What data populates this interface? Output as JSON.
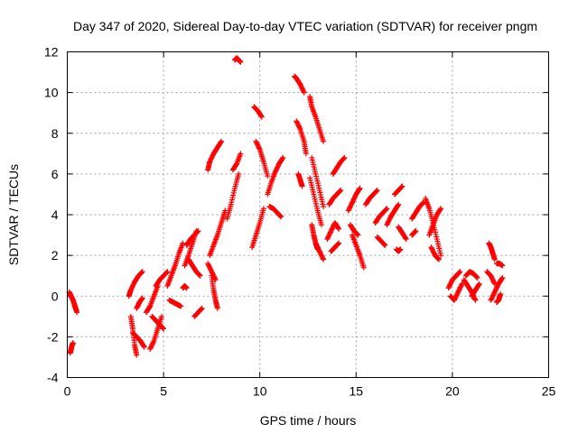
{
  "chart_data": {
    "type": "scatter",
    "title": "Day 347 of 2020, Sidereal Day-to-day VTEC variation (SDTVAR) for receiver pngm",
    "xlabel": "GPS time / hours",
    "ylabel": "SDTVAR / TECUs",
    "xlim": [
      0,
      25
    ],
    "ylim": [
      -4,
      12
    ],
    "xticks": [
      0,
      5,
      10,
      15,
      20,
      25
    ],
    "yticks": [
      -4,
      -2,
      0,
      2,
      4,
      6,
      8,
      10,
      12
    ],
    "grid": true,
    "marker": "+",
    "color": "#ff0000",
    "arcs": [
      {
        "x": [
          0.1,
          0.2,
          0.3,
          0.4,
          0.5
        ],
        "y": [
          0.2,
          0.0,
          -0.2,
          -0.5,
          -0.8
        ]
      },
      {
        "x": [
          0.15,
          0.2,
          0.25,
          0.3
        ],
        "y": [
          -2.8,
          -2.6,
          -2.4,
          -2.3
        ]
      },
      {
        "x": [
          3.2,
          3.3,
          3.5,
          3.7,
          3.9
        ],
        "y": [
          0.0,
          0.3,
          0.7,
          1.0,
          1.2
        ]
      },
      {
        "x": [
          3.3,
          3.4,
          3.5,
          3.6
        ],
        "y": [
          -1.0,
          -1.6,
          -2.4,
          -2.9
        ]
      },
      {
        "x": [
          3.4,
          3.6,
          3.8,
          4.0
        ],
        "y": [
          -1.8,
          -2.0,
          -2.2,
          -2.5
        ]
      },
      {
        "x": [
          3.6,
          3.75,
          3.9
        ],
        "y": [
          -0.6,
          -0.3,
          -0.1
        ]
      },
      {
        "x": [
          4.1,
          4.3,
          4.5,
          4.7
        ],
        "y": [
          -0.8,
          -0.5,
          0.0,
          0.5
        ]
      },
      {
        "x": [
          4.3,
          4.5,
          4.7,
          4.9
        ],
        "y": [
          -2.6,
          -2.2,
          -1.6,
          -1.0
        ]
      },
      {
        "x": [
          4.4,
          4.6,
          4.8,
          5.0
        ],
        "y": [
          -1.0,
          -1.2,
          -1.4,
          -1.6
        ]
      },
      {
        "x": [
          4.6,
          4.8,
          5.0,
          5.2
        ],
        "y": [
          0.5,
          0.8,
          1.0,
          1.2
        ]
      },
      {
        "x": [
          5.2,
          5.4,
          5.6,
          5.8,
          6.0
        ],
        "y": [
          0.5,
          1.0,
          1.5,
          2.1,
          2.6
        ]
      },
      {
        "x": [
          5.3,
          5.5,
          5.7,
          5.9
        ],
        "y": [
          -0.2,
          -0.3,
          -0.4,
          -0.5
        ]
      },
      {
        "x": [
          6.0,
          6.1,
          6.2
        ],
        "y": [
          0.4,
          0.5,
          0.4
        ]
      },
      {
        "x": [
          6.1,
          6.3,
          6.5,
          6.7
        ],
        "y": [
          1.5,
          2.0,
          2.6,
          3.2
        ]
      },
      {
        "x": [
          6.2,
          6.4,
          6.6,
          6.8
        ],
        "y": [
          2.5,
          2.8,
          3.0,
          3.2
        ]
      },
      {
        "x": [
          6.3,
          6.5,
          6.7,
          6.9
        ],
        "y": [
          1.8,
          1.5,
          1.2,
          1.0
        ]
      },
      {
        "x": [
          6.6,
          6.8,
          7.0
        ],
        "y": [
          -1.0,
          -0.8,
          -0.6
        ]
      },
      {
        "x": [
          7.3,
          7.4,
          7.6,
          7.8,
          8.0
        ],
        "y": [
          6.2,
          6.6,
          7.0,
          7.3,
          7.6
        ]
      },
      {
        "x": [
          7.4,
          7.6,
          7.8,
          8.0,
          8.2
        ],
        "y": [
          2.0,
          2.5,
          3.0,
          3.6,
          4.2
        ]
      },
      {
        "x": [
          7.5,
          7.6,
          7.7,
          7.8
        ],
        "y": [
          1.0,
          0.3,
          -0.2,
          -0.6
        ]
      },
      {
        "x": [
          7.3,
          7.5,
          7.7
        ],
        "y": [
          1.6,
          1.2,
          0.8
        ]
      },
      {
        "x": [
          8.3,
          8.5,
          8.7,
          8.9
        ],
        "y": [
          3.8,
          4.5,
          5.3,
          6.0
        ]
      },
      {
        "x": [
          8.6,
          8.8,
          9.0
        ],
        "y": [
          6.2,
          6.5,
          7.0
        ]
      },
      {
        "x": [
          8.7,
          8.8,
          8.9,
          9.0
        ],
        "y": [
          11.6,
          11.7,
          11.6,
          11.5
        ]
      },
      {
        "x": [
          9.6,
          9.8,
          10.0,
          10.2
        ],
        "y": [
          2.4,
          3.0,
          3.6,
          4.3
        ]
      },
      {
        "x": [
          9.7,
          9.9,
          10.1
        ],
        "y": [
          9.3,
          9.1,
          8.8
        ]
      },
      {
        "x": [
          9.8,
          10.0,
          10.2,
          10.4
        ],
        "y": [
          7.6,
          7.2,
          6.6,
          5.9
        ]
      },
      {
        "x": [
          10.4,
          10.6,
          10.8,
          11.0,
          11.2
        ],
        "y": [
          5.0,
          5.6,
          6.1,
          6.5,
          6.8
        ]
      },
      {
        "x": [
          10.5,
          10.7,
          10.9,
          11.1
        ],
        "y": [
          4.4,
          4.3,
          4.1,
          3.9
        ]
      },
      {
        "x": [
          11.8,
          11.9,
          12.1,
          12.3
        ],
        "y": [
          10.8,
          10.7,
          10.4,
          10.0
        ]
      },
      {
        "x": [
          11.9,
          12.1,
          12.3,
          12.4
        ],
        "y": [
          8.6,
          8.2,
          7.6,
          7.0
        ]
      },
      {
        "x": [
          12.0,
          12.1,
          12.2
        ],
        "y": [
          6.0,
          5.7,
          5.4
        ]
      },
      {
        "x": [
          12.6,
          12.7,
          12.9,
          13.1,
          13.3
        ],
        "y": [
          9.8,
          9.3,
          8.8,
          8.2,
          7.6
        ]
      },
      {
        "x": [
          12.7,
          12.9,
          13.1,
          13.3
        ],
        "y": [
          6.8,
          6.0,
          5.2,
          4.4
        ]
      },
      {
        "x": [
          12.6,
          12.8,
          13.0,
          13.2
        ],
        "y": [
          5.8,
          5.0,
          4.2,
          3.5
        ]
      },
      {
        "x": [
          12.7,
          12.8,
          12.9,
          13.0
        ],
        "y": [
          3.5,
          3.0,
          2.6,
          2.3
        ]
      },
      {
        "x": [
          12.9,
          13.1,
          13.3
        ],
        "y": [
          2.6,
          2.2,
          1.8
        ]
      },
      {
        "x": [
          13.5,
          13.7,
          13.9,
          14.1
        ],
        "y": [
          2.8,
          3.2,
          3.6,
          3.3
        ]
      },
      {
        "x": [
          13.6,
          13.8,
          14.0,
          14.2
        ],
        "y": [
          4.5,
          4.8,
          5.0,
          5.2
        ]
      },
      {
        "x": [
          13.8,
          14.0,
          14.2,
          14.4
        ],
        "y": [
          6.0,
          6.3,
          6.6,
          6.8
        ]
      },
      {
        "x": [
          13.7,
          13.9,
          14.1
        ],
        "y": [
          2.2,
          2.4,
          2.6
        ]
      },
      {
        "x": [
          14.6,
          14.8,
          15.0,
          15.2
        ],
        "y": [
          4.2,
          4.6,
          5.0,
          5.3
        ]
      },
      {
        "x": [
          14.8,
          15.0,
          15.2,
          15.4
        ],
        "y": [
          3.0,
          2.5,
          2.0,
          1.4
        ]
      },
      {
        "x": [
          14.7,
          14.9,
          15.1
        ],
        "y": [
          3.5,
          3.2,
          3.0
        ]
      },
      {
        "x": [
          15.5,
          15.7,
          15.9,
          16.1
        ],
        "y": [
          4.5,
          4.8,
          5.0,
          5.2
        ]
      },
      {
        "x": [
          16.0,
          16.2,
          16.4,
          16.6
        ],
        "y": [
          3.6,
          3.9,
          4.1,
          4.3
        ]
      },
      {
        "x": [
          16.1,
          16.3,
          16.5
        ],
        "y": [
          2.9,
          2.7,
          2.5
        ]
      },
      {
        "x": [
          16.6,
          16.8,
          17.0,
          17.2
        ],
        "y": [
          3.5,
          3.9,
          4.2,
          4.5
        ]
      },
      {
        "x": [
          17.0,
          17.2,
          17.4
        ],
        "y": [
          5.0,
          5.2,
          5.4
        ]
      },
      {
        "x": [
          17.2,
          17.4,
          17.6
        ],
        "y": [
          3.4,
          3.1,
          2.8
        ]
      },
      {
        "x": [
          17.1,
          17.2,
          17.3
        ],
        "y": [
          2.3,
          2.2,
          2.3
        ]
      },
      {
        "x": [
          17.9,
          18.1,
          18.3,
          18.5
        ],
        "y": [
          3.8,
          4.1,
          4.4,
          4.6
        ]
      },
      {
        "x": [
          17.9,
          18.0,
          18.1
        ],
        "y": [
          3.0,
          3.1,
          3.2
        ]
      },
      {
        "x": [
          18.6,
          18.8,
          19.0,
          19.2,
          19.4
        ],
        "y": [
          4.8,
          4.3,
          3.6,
          2.8,
          2.0
        ]
      },
      {
        "x": [
          18.8,
          19.0,
          19.2,
          19.4
        ],
        "y": [
          3.0,
          3.5,
          4.0,
          4.3
        ]
      },
      {
        "x": [
          18.9,
          19.1,
          19.3
        ],
        "y": [
          2.4,
          2.0,
          1.8
        ]
      },
      {
        "x": [
          19.8,
          20.0,
          20.2,
          20.4
        ],
        "y": [
          0.4,
          0.8,
          1.0,
          1.2
        ]
      },
      {
        "x": [
          19.9,
          20.1,
          20.3,
          20.5
        ],
        "y": [
          0.0,
          -0.2,
          0.2,
          0.6
        ]
      },
      {
        "x": [
          20.6,
          20.8,
          21.0,
          21.2
        ],
        "y": [
          0.8,
          0.5,
          0.2,
          -0.2
        ]
      },
      {
        "x": [
          20.7,
          20.9,
          21.1,
          21.3
        ],
        "y": [
          1.0,
          1.2,
          1.1,
          0.9
        ]
      },
      {
        "x": [
          21.0,
          21.2,
          21.4
        ],
        "y": [
          0.0,
          0.3,
          0.6
        ]
      },
      {
        "x": [
          21.8,
          22.0,
          22.2
        ],
        "y": [
          1.2,
          1.0,
          0.6
        ]
      },
      {
        "x": [
          21.9,
          22.0,
          22.1,
          22.2
        ],
        "y": [
          2.6,
          2.4,
          2.1,
          1.8
        ]
      },
      {
        "x": [
          22.0,
          22.2,
          22.4,
          22.6
        ],
        "y": [
          -0.2,
          0.2,
          0.6,
          0.9
        ]
      },
      {
        "x": [
          22.3,
          22.45,
          22.6
        ],
        "y": [
          1.6,
          1.6,
          1.5
        ]
      },
      {
        "x": [
          22.3,
          22.4,
          22.5
        ],
        "y": [
          -0.3,
          -0.2,
          0.1
        ]
      }
    ]
  }
}
